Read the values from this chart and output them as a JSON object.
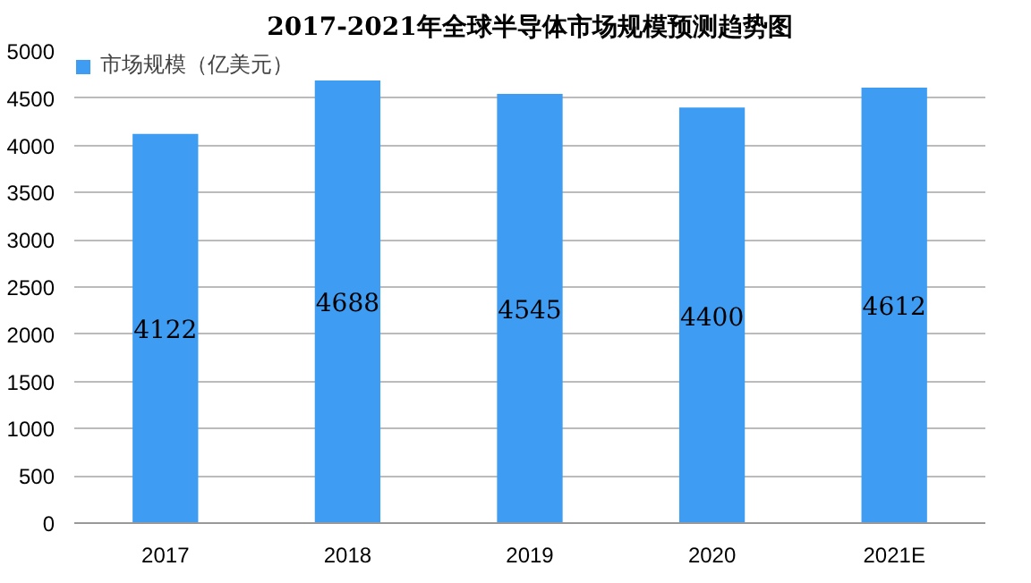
{
  "chart_data": {
    "type": "bar",
    "title": "2017-2021年全球半导体市场规模预测趋势图",
    "categories": [
      "2017",
      "2018",
      "2019",
      "2020",
      "2021E"
    ],
    "series": [
      {
        "name": "市场规模（亿美元）",
        "color": "#3e9cf3",
        "values": [
          4122,
          4688,
          4545,
          4400,
          4612
        ]
      }
    ],
    "ylim": [
      0,
      5000
    ],
    "yticks": [
      0,
      500,
      1000,
      1500,
      2000,
      2500,
      3000,
      3500,
      4000,
      4500,
      5000
    ],
    "grid": "y",
    "legend": "top",
    "data_labels": true
  }
}
